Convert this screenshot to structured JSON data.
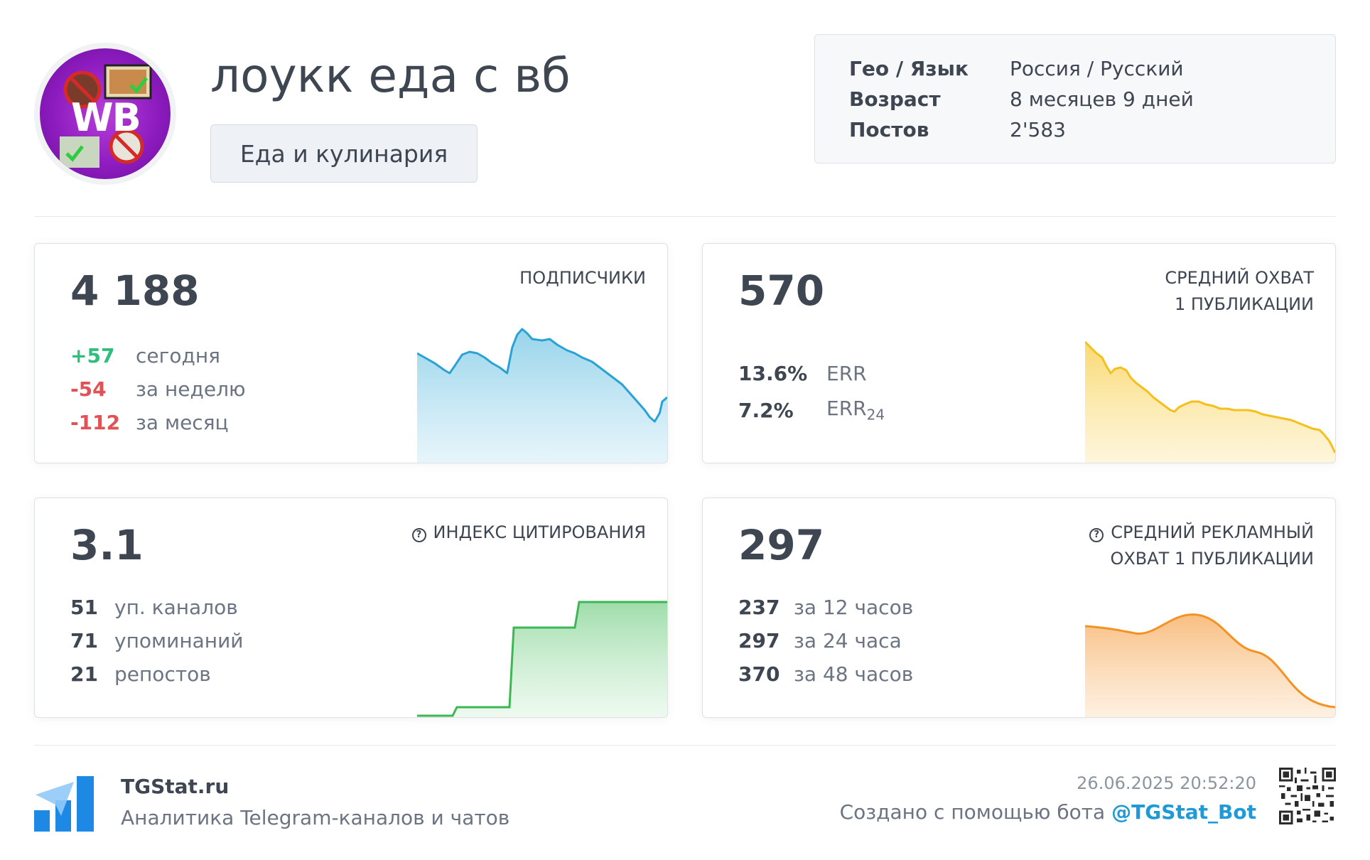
{
  "channel": {
    "title": "лоукк еда с вб",
    "category": "Еда и кулинария",
    "avatar_text": "WB"
  },
  "info": [
    {
      "key": "Гео / Язык",
      "value": "Россия / Русский"
    },
    {
      "key": "Возраст",
      "value": "8 месяцев 9 дней"
    },
    {
      "key": "Постов",
      "value": "2'583"
    }
  ],
  "subscribers": {
    "value": "4 188",
    "label": "ПОДПИСЧИКИ",
    "stats": [
      {
        "num": "+57",
        "text": "сегодня"
      },
      {
        "num": "-54",
        "text": "за неделю"
      },
      {
        "num": "-112",
        "text": "за месяц"
      }
    ]
  },
  "reach": {
    "value": "570",
    "label_line1": "СРЕДНИЙ ОХВАТ",
    "label_line2": "1 ПУБЛИКАЦИИ",
    "stats": [
      {
        "num": "13.6%",
        "text": "ERR"
      },
      {
        "num": "7.2%",
        "text": "ERR",
        "sub": "24"
      }
    ]
  },
  "citation": {
    "value": "3.1",
    "label": "ИНДЕКС ЦИТИРОВАНИЯ",
    "stats": [
      {
        "num": "51",
        "text": "уп. каналов"
      },
      {
        "num": "71",
        "text": "упоминаний"
      },
      {
        "num": "21",
        "text": "репостов"
      }
    ]
  },
  "ad_reach": {
    "value": "297",
    "label_line1": "СРЕДНИЙ РЕКЛАМНЫЙ",
    "label_line2": "ОХВАТ 1 ПУБЛИКАЦИИ",
    "stats": [
      {
        "num": "237",
        "text": "за 12 часов"
      },
      {
        "num": "297",
        "text": "за 24 часа"
      },
      {
        "num": "370",
        "text": "за 48 часов"
      }
    ]
  },
  "colors": {
    "subscribers": "#2aa3d4",
    "reach": "#f5bf1e",
    "citation": "#3cb754",
    "ad_reach": "#f39325",
    "positive": "#2fbf7c",
    "negative": "#e05256",
    "link": "#1f9ad8"
  },
  "footer": {
    "site": "TGStat.ru",
    "tagline": "Аналитика Telegram-каналов и чатов",
    "timestamp": "26.06.2025 20:52:20",
    "created_prefix": "Создано с помощью бота ",
    "bot": "@TGStat_Bot"
  }
}
